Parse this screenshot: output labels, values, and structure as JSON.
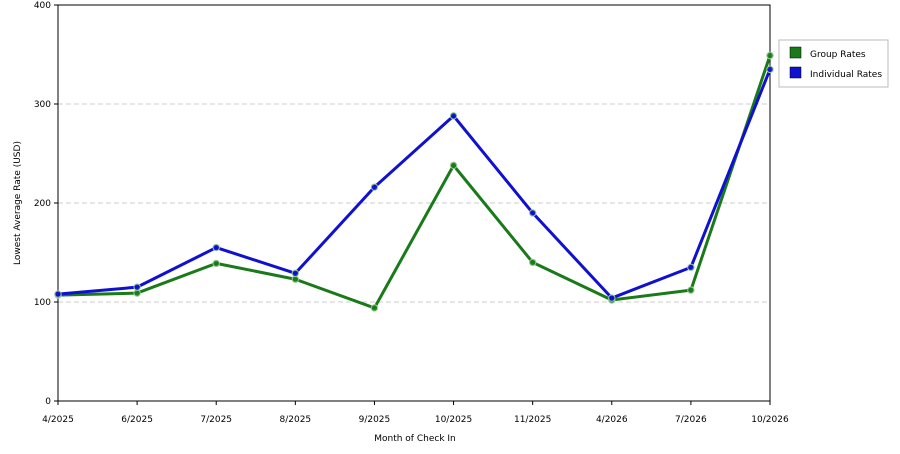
{
  "chart_data": {
    "type": "line",
    "x_label": "Month of Check In",
    "y_label": "Lowest Average Rate (USD)",
    "categories": [
      "4/2025",
      "6/2025",
      "7/2025",
      "8/2025",
      "9/2025",
      "10/2025",
      "11/2025",
      "4/2026",
      "7/2026",
      "10/2026"
    ],
    "series": [
      {
        "name": "Group Rates",
        "color": "#1a7a1a",
        "values": [
          107,
          109,
          139,
          123,
          94,
          238,
          140,
          102,
          112,
          349
        ]
      },
      {
        "name": "Individual Rates",
        "color": "#1010d0",
        "values": [
          108,
          115,
          155,
          129,
          216,
          288,
          190,
          104,
          135,
          335
        ]
      }
    ],
    "ylim": [
      0,
      400
    ],
    "yticks": [
      0,
      100,
      200,
      300,
      400
    ],
    "grid": true,
    "legend": "right"
  }
}
